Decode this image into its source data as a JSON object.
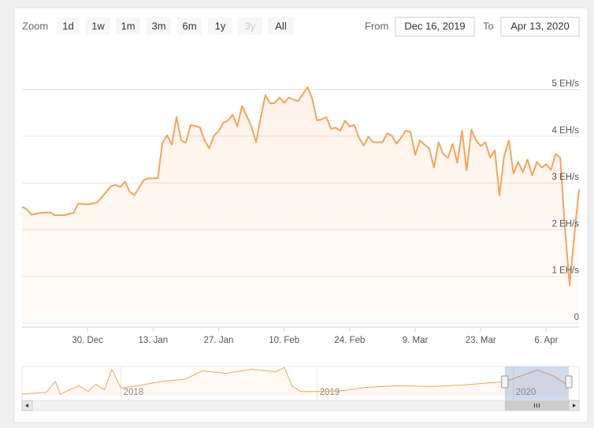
{
  "chart_data": {
    "type": "area",
    "range_selector": {
      "zoom_label": "Zoom",
      "buttons": [
        "1d",
        "1w",
        "1m",
        "3m",
        "6m",
        "1y",
        "3y",
        "All"
      ],
      "disabled_button": 6,
      "from_label": "From",
      "from": "Dec 16, 2019",
      "to_label": "To",
      "to": "Apr 13, 2020"
    },
    "x": [
      "2019-12-16",
      "2019-12-17",
      "2019-12-18",
      "2019-12-20",
      "2019-12-22",
      "2019-12-23",
      "2019-12-25",
      "2019-12-27",
      "2019-12-28",
      "2019-12-30",
      "2020-01-01",
      "2020-01-02",
      "2020-01-04",
      "2020-01-05",
      "2020-01-06",
      "2020-01-07",
      "2020-01-08",
      "2020-01-09",
      "2020-01-11",
      "2020-01-12",
      "2020-01-14",
      "2020-01-15",
      "2020-01-16",
      "2020-01-17",
      "2020-01-18",
      "2020-01-19",
      "2020-01-20",
      "2020-01-21",
      "2020-01-23",
      "2020-01-24",
      "2020-01-25",
      "2020-01-26",
      "2020-01-27",
      "2020-01-28",
      "2020-01-29",
      "2020-01-30",
      "2020-01-31",
      "2020-02-01",
      "2020-02-02",
      "2020-02-03",
      "2020-02-04",
      "2020-02-05",
      "2020-02-06",
      "2020-02-07",
      "2020-02-08",
      "2020-02-09",
      "2020-02-10",
      "2020-02-11",
      "2020-02-12",
      "2020-02-13",
      "2020-02-14",
      "2020-02-15",
      "2020-02-16",
      "2020-02-17",
      "2020-02-18",
      "2020-02-19",
      "2020-02-20",
      "2020-02-21",
      "2020-02-22",
      "2020-02-23",
      "2020-02-24",
      "2020-02-25",
      "2020-02-26",
      "2020-02-27",
      "2020-02-28",
      "2020-02-29",
      "2020-03-01",
      "2020-03-02",
      "2020-03-03",
      "2020-03-04",
      "2020-03-05",
      "2020-03-06",
      "2020-03-07",
      "2020-03-08",
      "2020-03-09",
      "2020-03-10",
      "2020-03-11",
      "2020-03-12",
      "2020-03-13",
      "2020-03-14",
      "2020-03-15",
      "2020-03-16",
      "2020-03-17",
      "2020-03-18",
      "2020-03-19",
      "2020-03-20",
      "2020-03-21",
      "2020-03-22",
      "2020-03-23",
      "2020-03-24",
      "2020-03-25",
      "2020-03-26",
      "2020-03-27",
      "2020-03-28",
      "2020-03-29",
      "2020-03-30",
      "2020-03-31",
      "2020-04-01",
      "2020-04-02",
      "2020-04-03",
      "2020-04-04",
      "2020-04-05",
      "2020-04-06",
      "2020-04-07",
      "2020-04-08",
      "2020-04-09",
      "2020-04-10",
      "2020-04-11",
      "2020-04-12",
      "2020-04-13"
    ],
    "series": [
      {
        "color": "#f7a35c",
        "values": [
          2.49,
          2.44,
          2.32,
          2.36,
          2.37,
          2.31,
          2.31,
          2.36,
          2.56,
          2.54,
          2.58,
          2.69,
          2.93,
          2.96,
          2.91,
          3.03,
          2.81,
          2.74,
          3.06,
          3.1,
          3.1,
          3.86,
          4.02,
          3.82,
          4.41,
          3.91,
          3.86,
          4.24,
          4.19,
          3.91,
          3.74,
          4.01,
          4.11,
          4.29,
          4.33,
          4.46,
          4.21,
          4.65,
          4.43,
          4.21,
          3.87,
          4.41,
          4.88,
          4.7,
          4.71,
          4.83,
          4.71,
          4.83,
          4.78,
          4.75,
          4.9,
          5.05,
          4.8,
          4.34,
          4.36,
          4.41,
          4.16,
          4.18,
          4.12,
          4.33,
          4.21,
          4.24,
          3.96,
          3.8,
          3.99,
          3.87,
          3.87,
          3.87,
          4.06,
          4.01,
          3.84,
          3.97,
          4.12,
          4.09,
          3.6,
          3.91,
          3.82,
          3.74,
          3.33,
          3.87,
          3.62,
          3.54,
          3.84,
          3.43,
          4.12,
          3.27,
          4.14,
          3.91,
          3.79,
          3.87,
          3.54,
          3.7,
          2.73,
          3.57,
          3.91,
          3.2,
          3.45,
          3.23,
          3.5,
          3.16,
          3.45,
          3.33,
          3.4,
          3.28,
          3.62,
          3.54,
          2.02,
          0.81,
          1.9,
          2.86
        ]
      }
    ],
    "xlim": [
      "2019-12-16",
      "2020-04-13"
    ],
    "xticks": [
      {
        "value": "2019-12-30",
        "label": "30. Dec"
      },
      {
        "value": "2020-01-13",
        "label": "13. Jan"
      },
      {
        "value": "2020-01-27",
        "label": "27. Jan"
      },
      {
        "value": "2020-02-10",
        "label": "10. Feb"
      },
      {
        "value": "2020-02-24",
        "label": "24. Feb"
      },
      {
        "value": "2020-03-09",
        "label": "9. Mar"
      },
      {
        "value": "2020-03-23",
        "label": "23. Mar"
      },
      {
        "value": "2020-04-06",
        "label": "6. Apr"
      }
    ],
    "ylim": [
      0,
      5.7
    ],
    "yticks": [
      0,
      {
        "value": 1,
        "label": "1 EH/s"
      },
      {
        "value": 2,
        "label": "2 EH/s"
      },
      {
        "value": 3,
        "label": "3 EH/s"
      },
      {
        "value": 4,
        "label": "4 EH/s"
      },
      {
        "value": 5,
        "label": "5 EH/s"
      }
    ],
    "grid": true,
    "navigator": {
      "x": [
        "2017-07-01",
        "2017-08-15",
        "2017-09-01",
        "2017-09-10",
        "2017-10-15",
        "2017-11-01",
        "2017-11-15",
        "2017-12-01",
        "2017-12-15",
        "2018-01-01",
        "2018-02-01",
        "2018-03-15",
        "2018-05-01",
        "2018-06-01",
        "2018-07-15",
        "2018-09-01",
        "2018-10-15",
        "2018-11-01",
        "2018-11-15",
        "2018-12-01",
        "2019-01-01",
        "2019-02-15",
        "2019-04-01",
        "2019-06-01",
        "2019-08-01",
        "2019-10-01",
        "2019-12-16",
        "2020-02-15",
        "2020-03-15",
        "2020-04-13"
      ],
      "values": [
        0.32,
        0.65,
        2.75,
        0.32,
        1.94,
        0.81,
        2.27,
        1.13,
        5.18,
        1.46,
        1.94,
        2.75,
        3.24,
        4.85,
        4.37,
        5.18,
        4.69,
        5.5,
        1.94,
        0.81,
        0.81,
        0.97,
        1.62,
        1.94,
        1.78,
        2.1,
        2.75,
        5.02,
        3.88,
        1.94
      ],
      "xlim": [
        "2017-07-01",
        "2020-04-13"
      ],
      "ylim": [
        0,
        5.7
      ],
      "xticks": [
        {
          "value": "2018-01-01",
          "label": "2018"
        },
        {
          "value": "2019-01-01",
          "label": "2019"
        },
        {
          "value": "2020-01-01",
          "label": "2020"
        }
      ]
    }
  }
}
